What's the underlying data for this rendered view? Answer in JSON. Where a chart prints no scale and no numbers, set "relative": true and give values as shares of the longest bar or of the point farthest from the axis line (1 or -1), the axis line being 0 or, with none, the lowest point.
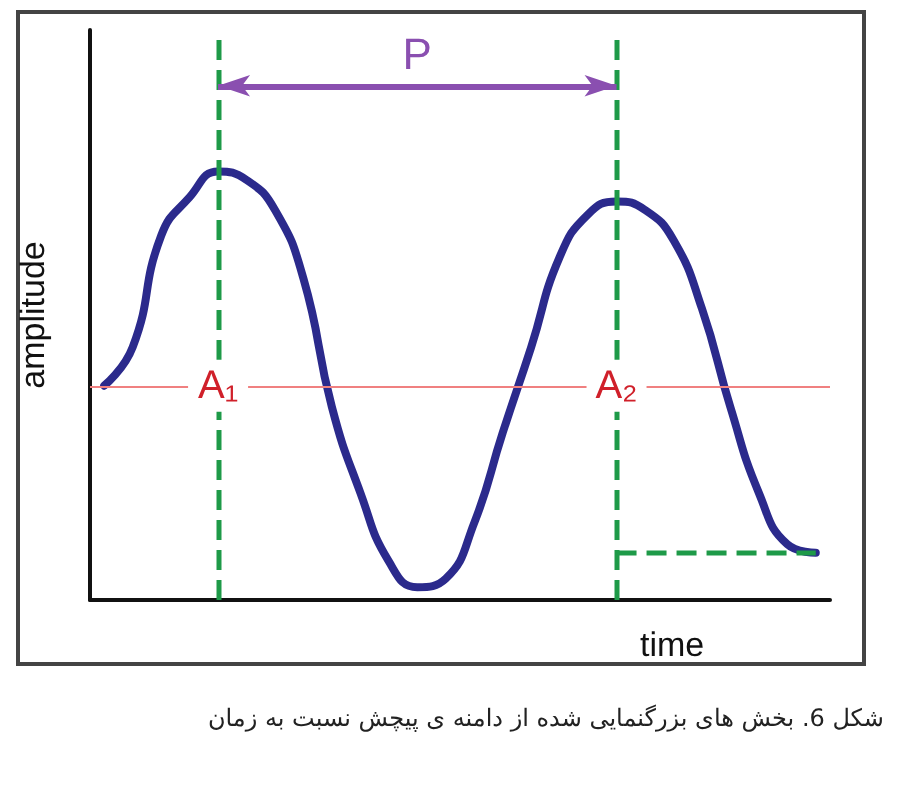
{
  "chart_data": {
    "type": "line",
    "relative": true,
    "xlabel": "time",
    "ylabel": "amplitude",
    "categories": [
      null,
      null,
      null,
      null,
      null,
      null,
      null,
      null,
      null,
      null,
      null,
      null,
      null,
      null,
      null,
      null,
      null,
      null,
      null,
      null,
      null,
      null,
      null,
      null,
      null,
      null
    ],
    "series": [
      {
        "color": "#2b2a8c",
        "values": [
          0.5,
          0.59,
          0.85,
          0.94,
          1,
          0.98,
          0.91,
          0.75,
          0.45,
          0.25,
          0.09,
          0.03,
          0.05,
          0.18,
          0.39,
          0.59,
          0.8,
          0.9,
          0.93,
          0.91,
          0.84,
          0.68,
          0.45,
          0.25,
          0.13,
          0.11
        ]
      }
    ],
    "ref_lines": [
      {
        "axis": "y",
        "value": 0.5,
        "color": "#f08080"
      },
      {
        "axis": "y",
        "value": 0.11,
        "color": "#1e9a48",
        "line_style": "dashed"
      }
    ],
    "annotations": [
      "P",
      "A₁",
      "A₂",
      "شکل 6. بخش های بزرگنمایی شده از دامنه ی پیچش نسبت به زمان"
    ],
    "marker": "none",
    "grid": false
  }
}
